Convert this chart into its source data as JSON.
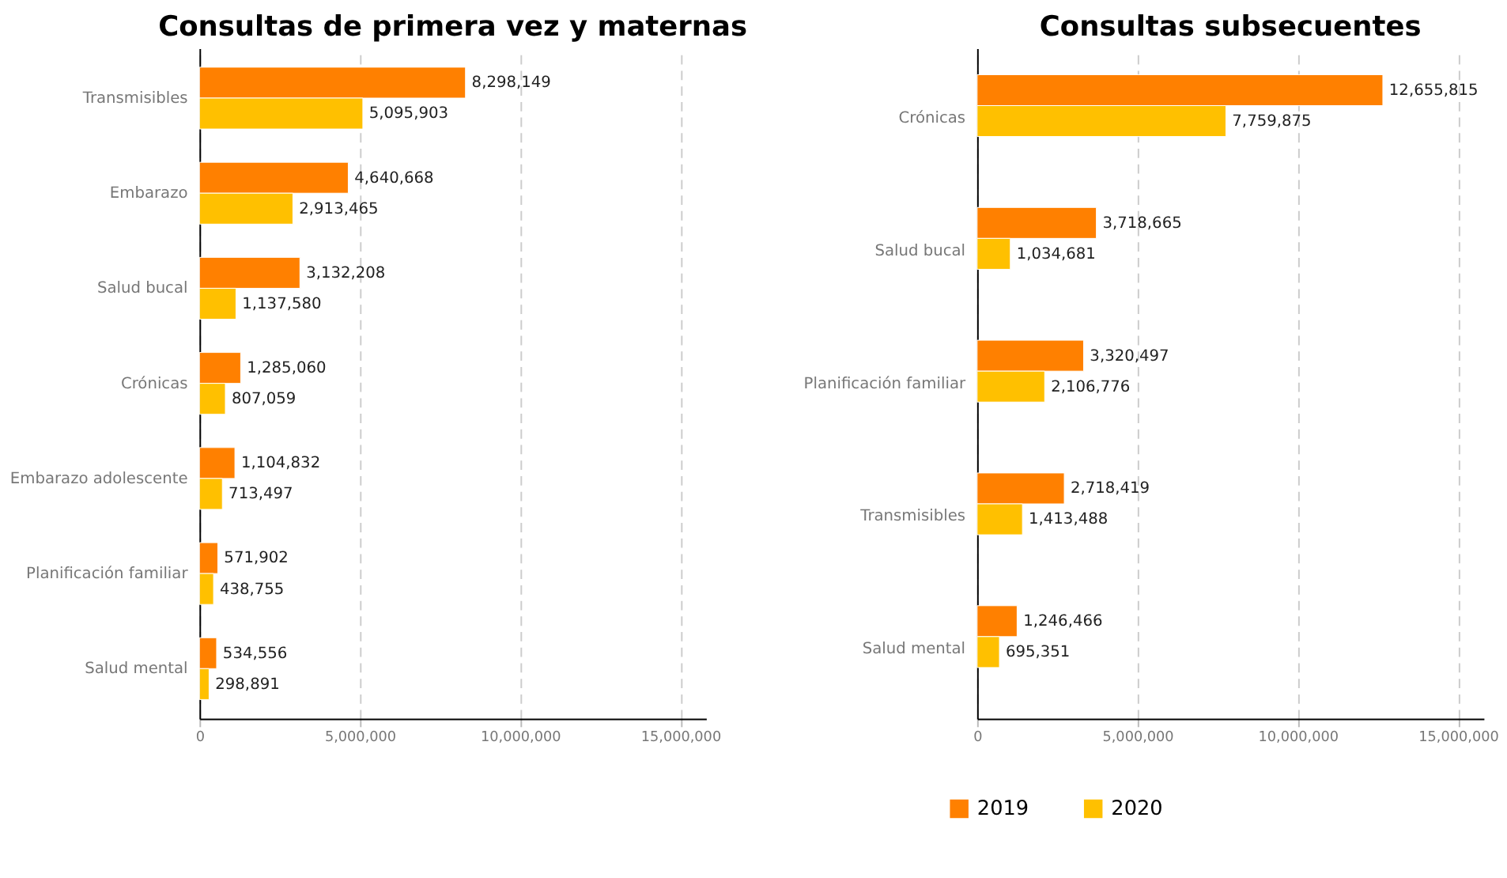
{
  "chart_data": [
    {
      "type": "bar",
      "orientation": "horizontal",
      "title": "Consultas de primera vez y maternas",
      "categories": [
        "Transmisibles",
        "Embarazo",
        "Salud bucal",
        "Crónicas",
        "Embarazo adolescente",
        "Planificación familiar",
        "Salud mental"
      ],
      "series": [
        {
          "name": "2019",
          "color": "#ff8000",
          "values": [
            8298149,
            4640668,
            3132208,
            1285060,
            1104832,
            571902,
            534556
          ],
          "value_labels": [
            "8,298,149",
            "4,640,668",
            "3,132,208",
            "1,285,060",
            "1,104,832",
            "571,902",
            "534,556"
          ]
        },
        {
          "name": "2020",
          "color": "#ffc000",
          "values": [
            5095903,
            2913465,
            1137580,
            807059,
            713497,
            438755,
            298891
          ],
          "value_labels": [
            "5,095,903",
            "2,913,465",
            "1,137,580",
            "807,059",
            "713,497",
            "438,755",
            "298,891"
          ]
        }
      ],
      "xlim": [
        0,
        15800000
      ],
      "xticks": [
        {
          "value": 0,
          "label": "0"
        },
        {
          "value": 5000000,
          "label": "5,000,000"
        },
        {
          "value": 10000000,
          "label": "10,000,000"
        },
        {
          "value": 15000000,
          "label": "15,000,000"
        }
      ],
      "grid": "x",
      "legend": "bottom"
    },
    {
      "type": "bar",
      "orientation": "horizontal",
      "title": "Consultas subsecuentes",
      "categories": [
        "Crónicas",
        "Salud bucal",
        "Planificación familiar",
        "Transmisibles",
        "Salud mental"
      ],
      "series": [
        {
          "name": "2019",
          "color": "#ff8000",
          "values": [
            12655815,
            3718665,
            3320497,
            2718419,
            1246466
          ],
          "value_labels": [
            "12,655,815",
            "3,718,665",
            "3,320,497",
            "2,718,419",
            "1,246,466"
          ]
        },
        {
          "name": "2020",
          "color": "#ffc000",
          "values": [
            7759875,
            1034681,
            2106776,
            1413488,
            695351
          ],
          "value_labels": [
            "7,759,875",
            "1,034,681",
            "2,106,776",
            "1,413,488",
            "695,351"
          ]
        }
      ],
      "xlim": [
        0,
        15800000
      ],
      "xticks": [
        {
          "value": 0,
          "label": "0"
        },
        {
          "value": 5000000,
          "label": "5,000,000"
        },
        {
          "value": 10000000,
          "label": "10,000,000"
        },
        {
          "value": 15000000,
          "label": "15,000,000"
        }
      ],
      "grid": "x",
      "legend": "bottom"
    }
  ]
}
